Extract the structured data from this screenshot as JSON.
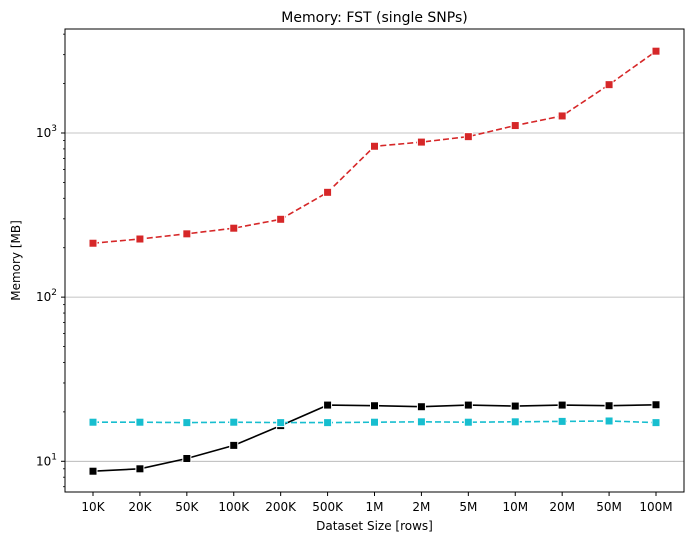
{
  "chart_data": {
    "type": "line",
    "title": "Memory:  FST (single SNPs)",
    "xlabel": "Dataset Size  [rows]",
    "ylabel": "Memory  [MB]",
    "yscale": "log",
    "ylim": [
      6.5,
      4300
    ],
    "yticks": [
      {
        "value": 10,
        "base": "10",
        "exp": "1"
      },
      {
        "value": 100,
        "base": "10",
        "exp": "2"
      },
      {
        "value": 1000,
        "base": "10",
        "exp": "3"
      }
    ],
    "grid": "horizontal major only",
    "categories": [
      "10K",
      "20K",
      "50K",
      "100K",
      "200K",
      "500K",
      "1M",
      "2M",
      "5M",
      "10M",
      "20M",
      "50M",
      "100M"
    ],
    "series": [
      {
        "color": "#d62728",
        "linestyle": "dashed",
        "marker": "square",
        "values": [
          213,
          226,
          243,
          263,
          298,
          435,
          830,
          880,
          950,
          1110,
          1270,
          1970,
          3150
        ]
      },
      {
        "color": "#000000",
        "linestyle": "solid",
        "marker": "square",
        "values": [
          8.7,
          9.0,
          10.4,
          12.5,
          16.5,
          22.0,
          21.8,
          21.5,
          22.0,
          21.7,
          22.0,
          21.8,
          22.1
        ]
      },
      {
        "color": "#17becf",
        "linestyle": "dashed",
        "marker": "square",
        "values": [
          17.3,
          17.3,
          17.2,
          17.3,
          17.2,
          17.2,
          17.3,
          17.4,
          17.3,
          17.4,
          17.5,
          17.6,
          17.2
        ]
      }
    ]
  }
}
